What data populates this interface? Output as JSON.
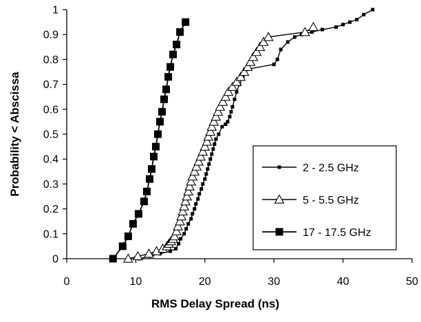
{
  "chart_data": {
    "type": "line",
    "xlabel": "RMS Delay Spread (ns)",
    "ylabel": "Probability < Abscissa",
    "xlim": [
      0,
      50
    ],
    "ylim": [
      0,
      1
    ],
    "x_ticks": [
      0,
      10,
      20,
      30,
      40,
      50
    ],
    "y_ticks": [
      0,
      0.1,
      0.2,
      0.3,
      0.4,
      0.5,
      0.6,
      0.7,
      0.8,
      0.9,
      1
    ],
    "x_tick_labels": [
      "0",
      "10",
      "20",
      "30",
      "40",
      "50"
    ],
    "y_tick_labels": [
      "0",
      "0.1",
      "0.2",
      "0.3",
      "0.4",
      "0.5",
      "0.6",
      "0.7",
      "0.8",
      "0.9",
      "1"
    ],
    "grid": false,
    "legend_position": "right",
    "series": [
      {
        "name": "2 - 2.5 GHz",
        "marker": "small-square",
        "color": "#000000",
        "x": [
          10.5,
          12,
          13.5,
          15,
          15.8,
          16.2,
          16.5,
          17,
          17.3,
          17.6,
          18,
          18.2,
          18.5,
          18.7,
          19,
          19.2,
          19.5,
          19.7,
          20,
          20.2,
          20.4,
          20.6,
          20.8,
          21,
          21.2,
          21.4,
          21.6,
          22,
          22.5,
          23,
          23.3,
          23.6,
          23.8,
          24,
          24.3,
          24.6,
          25,
          25.5,
          26,
          30,
          30.5,
          31,
          32,
          33,
          34,
          35.5,
          37,
          39,
          40,
          41,
          42,
          43,
          44.3
        ],
        "y": [
          0,
          0.01,
          0.02,
          0.03,
          0.04,
          0.06,
          0.08,
          0.1,
          0.12,
          0.14,
          0.16,
          0.18,
          0.2,
          0.22,
          0.24,
          0.26,
          0.28,
          0.3,
          0.32,
          0.34,
          0.36,
          0.38,
          0.4,
          0.42,
          0.44,
          0.46,
          0.48,
          0.5,
          0.53,
          0.54,
          0.55,
          0.57,
          0.59,
          0.61,
          0.64,
          0.67,
          0.7,
          0.73,
          0.76,
          0.78,
          0.8,
          0.84,
          0.87,
          0.89,
          0.9,
          0.91,
          0.92,
          0.93,
          0.94,
          0.95,
          0.96,
          0.98,
          1
        ]
      },
      {
        "name": "5 - 5.5 GHz",
        "marker": "triangle",
        "color": "#000000",
        "x": [
          8.9,
          10.3,
          11.9,
          13,
          13.9,
          14.5,
          14.8,
          15.1,
          15.4,
          15.6,
          15.9,
          16.1,
          16.4,
          16.6,
          16.8,
          17,
          17.2,
          17.4,
          17.6,
          17.8,
          18,
          18.2,
          18.5,
          18.8,
          19.1,
          19.4,
          19.7,
          20,
          20.3,
          20.5,
          20.8,
          21,
          21.3,
          21.6,
          21.9,
          22.2,
          22.6,
          23,
          23.4,
          24,
          24.6,
          25.2,
          25.7,
          26.2,
          26.6,
          27,
          27.5,
          28,
          28.5,
          29.2,
          34.5,
          35.7
        ],
        "y": [
          0,
          0.01,
          0.02,
          0.03,
          0.04,
          0.05,
          0.06,
          0.07,
          0.08,
          0.09,
          0.11,
          0.13,
          0.15,
          0.17,
          0.19,
          0.21,
          0.23,
          0.25,
          0.27,
          0.29,
          0.31,
          0.33,
          0.35,
          0.37,
          0.39,
          0.41,
          0.43,
          0.45,
          0.47,
          0.49,
          0.51,
          0.53,
          0.55,
          0.57,
          0.59,
          0.61,
          0.63,
          0.65,
          0.67,
          0.69,
          0.71,
          0.73,
          0.75,
          0.77,
          0.79,
          0.81,
          0.83,
          0.85,
          0.87,
          0.89,
          0.91,
          0.93
        ]
      },
      {
        "name": "17 - 17.5 GHz",
        "marker": "square",
        "color": "#000000",
        "x": [
          6.7,
          8.1,
          8.9,
          9.6,
          10.4,
          11.2,
          11.6,
          12,
          12.3,
          12.6,
          12.9,
          13.2,
          13.5,
          13.8,
          14.1,
          14.4,
          14.7,
          15,
          15.4,
          15.9,
          16.4,
          17.2
        ],
        "y": [
          0,
          0.05,
          0.09,
          0.14,
          0.18,
          0.23,
          0.27,
          0.32,
          0.36,
          0.41,
          0.45,
          0.5,
          0.55,
          0.59,
          0.64,
          0.68,
          0.73,
          0.77,
          0.82,
          0.86,
          0.91,
          0.95
        ]
      }
    ]
  }
}
